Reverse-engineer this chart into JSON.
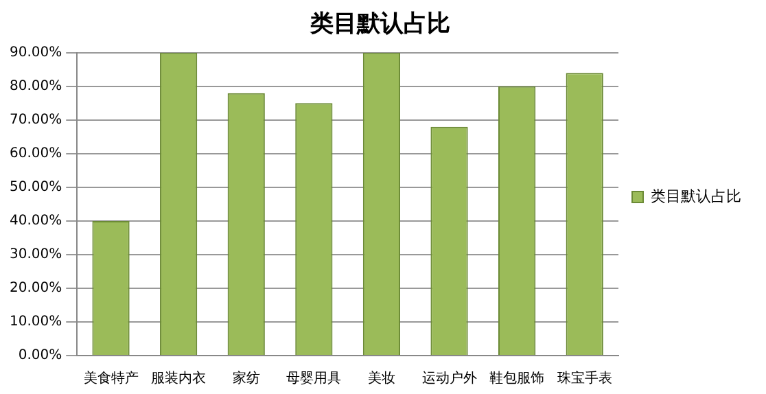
{
  "chart_data": {
    "type": "bar",
    "title": "类目默认占比",
    "categories": [
      "美食特产",
      "服装内衣",
      "家纺",
      "母婴用具",
      "美妆",
      "运动户外",
      "鞋包服饰",
      "珠宝手表"
    ],
    "series": [
      {
        "name": "类目默认占比",
        "color": "#9bbb59",
        "values": [
          40,
          90,
          78,
          75,
          90,
          68,
          80,
          84
        ]
      }
    ],
    "ylim": [
      0,
      90
    ],
    "yticks": [
      {
        "value": 0,
        "label": "0.00%"
      },
      {
        "value": 10,
        "label": "10.00%"
      },
      {
        "value": 20,
        "label": "20.00%"
      },
      {
        "value": 30,
        "label": "30.00%"
      },
      {
        "value": 40,
        "label": "40.00%"
      },
      {
        "value": 50,
        "label": "50.00%"
      },
      {
        "value": 60,
        "label": "60.00%"
      },
      {
        "value": 70,
        "label": "70.00%"
      },
      {
        "value": 80,
        "label": "80.00%"
      },
      {
        "value": 90,
        "label": "90.00%"
      }
    ],
    "grid": "y",
    "legend": "right"
  }
}
